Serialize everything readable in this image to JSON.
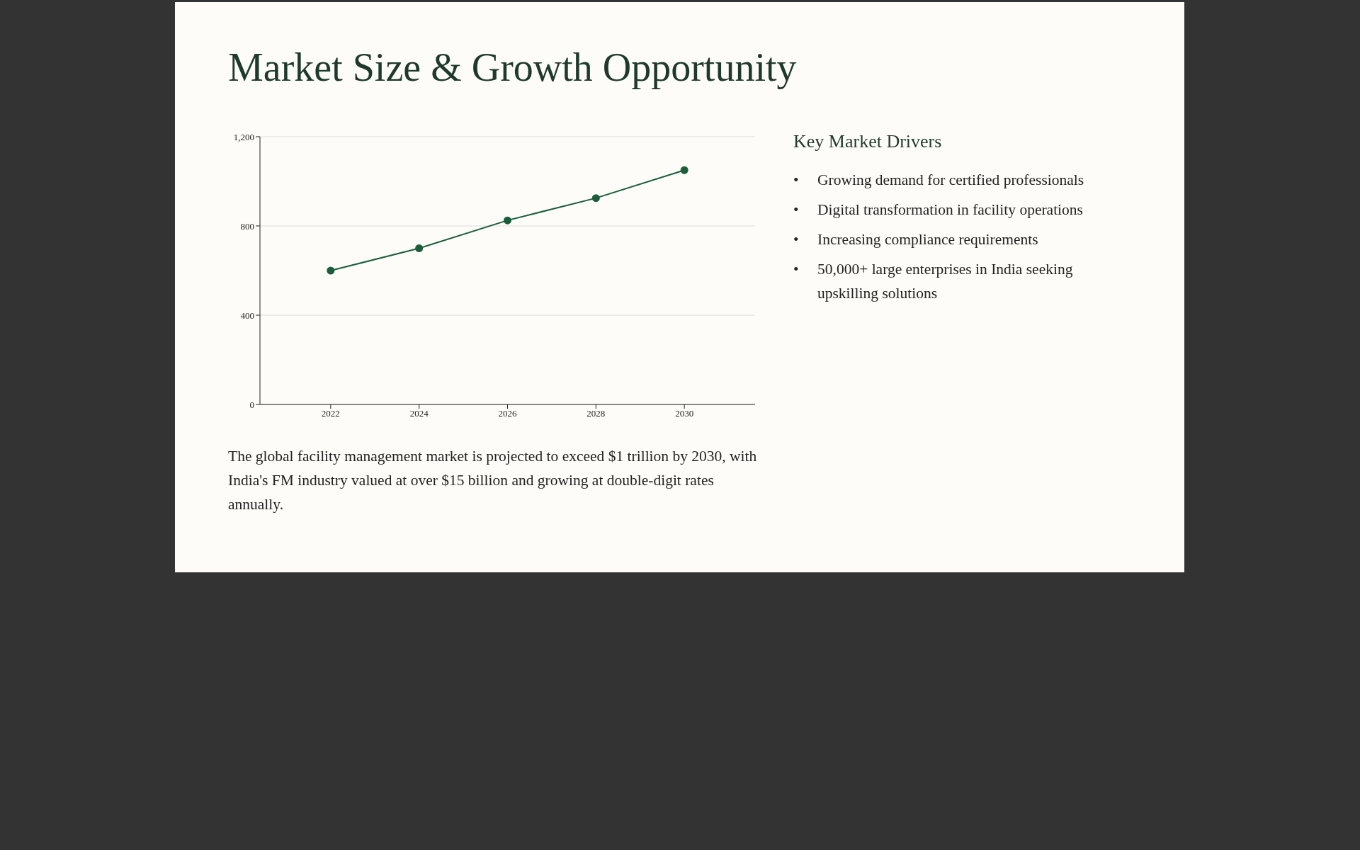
{
  "chart_data": {
    "type": "line",
    "title": "Market Size & Growth Opportunity",
    "x": [
      2022,
      2024,
      2026,
      2028,
      2030
    ],
    "values": [
      600,
      700,
      825,
      925,
      1050
    ],
    "color": "#1b5e3b",
    "xlim": [
      2020.4,
      2031.6
    ],
    "xticks": [
      2022,
      2024,
      2026,
      2028,
      2030
    ],
    "ylim": [
      0,
      1200
    ],
    "yticks": [
      0,
      {
        "value": 400,
        "label": "400"
      },
      {
        "value": 800,
        "label": "800"
      },
      {
        "value": 1200,
        "label": "1,200"
      }
    ],
    "grid": "y",
    "marker": "circle",
    "line_style": "solid",
    "annotations": [
      "The global facility management market is projected to exceed $1 trillion by 2030, with India's FM industry valued at over $15 billion and growing at double-digit rates annually.",
      "Key Market Drivers",
      "• Growing demand for certified professionals",
      "• Digital transformation in facility operations",
      "• Increasing compliance requirements",
      "• 50,000+ large enterprises in India seeking upskilling solutions"
    ]
  }
}
